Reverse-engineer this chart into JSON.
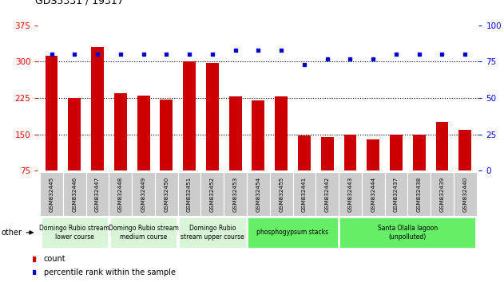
{
  "title": "GDS5331 / 19317",
  "samples": [
    "GSM832445",
    "GSM832446",
    "GSM832447",
    "GSM832448",
    "GSM832449",
    "GSM832450",
    "GSM832451",
    "GSM832452",
    "GSM832453",
    "GSM832454",
    "GSM832455",
    "GSM832441",
    "GSM832442",
    "GSM832443",
    "GSM832444",
    "GSM832437",
    "GSM832438",
    "GSM832439",
    "GSM832440"
  ],
  "counts": [
    313,
    225,
    330,
    235,
    230,
    222,
    300,
    297,
    228,
    220,
    228,
    147,
    144,
    150,
    140,
    150,
    150,
    175,
    160
  ],
  "percentiles": [
    80,
    80,
    80,
    80,
    80,
    80,
    80,
    80,
    83,
    83,
    83,
    73,
    77,
    77,
    77,
    80,
    80,
    80,
    80
  ],
  "groups": [
    {
      "label": "Domingo Rubio stream\nlower course",
      "start": 0,
      "end": 2,
      "color": "#d8f5d8"
    },
    {
      "label": "Domingo Rubio stream\nmedium course",
      "start": 3,
      "end": 5,
      "color": "#d8f5d8"
    },
    {
      "label": "Domingo Rubio\nstream upper course",
      "start": 6,
      "end": 8,
      "color": "#d8f5d8"
    },
    {
      "label": "phosphogypsum stacks",
      "start": 9,
      "end": 12,
      "color": "#66ee66"
    },
    {
      "label": "Santa Olalla lagoon\n(unpolluted)",
      "start": 13,
      "end": 18,
      "color": "#66ee66"
    }
  ],
  "ylim_left": [
    75,
    375
  ],
  "ylim_right": [
    0,
    100
  ],
  "yticks_left": [
    75,
    150,
    225,
    300,
    375
  ],
  "yticks_right": [
    0,
    25,
    50,
    75,
    100
  ],
  "bar_color": "#cc0000",
  "dot_color": "#0000cc",
  "bar_width": 0.55,
  "xlab_box_color": "#cccccc",
  "grid_lines": [
    150,
    225,
    300
  ]
}
